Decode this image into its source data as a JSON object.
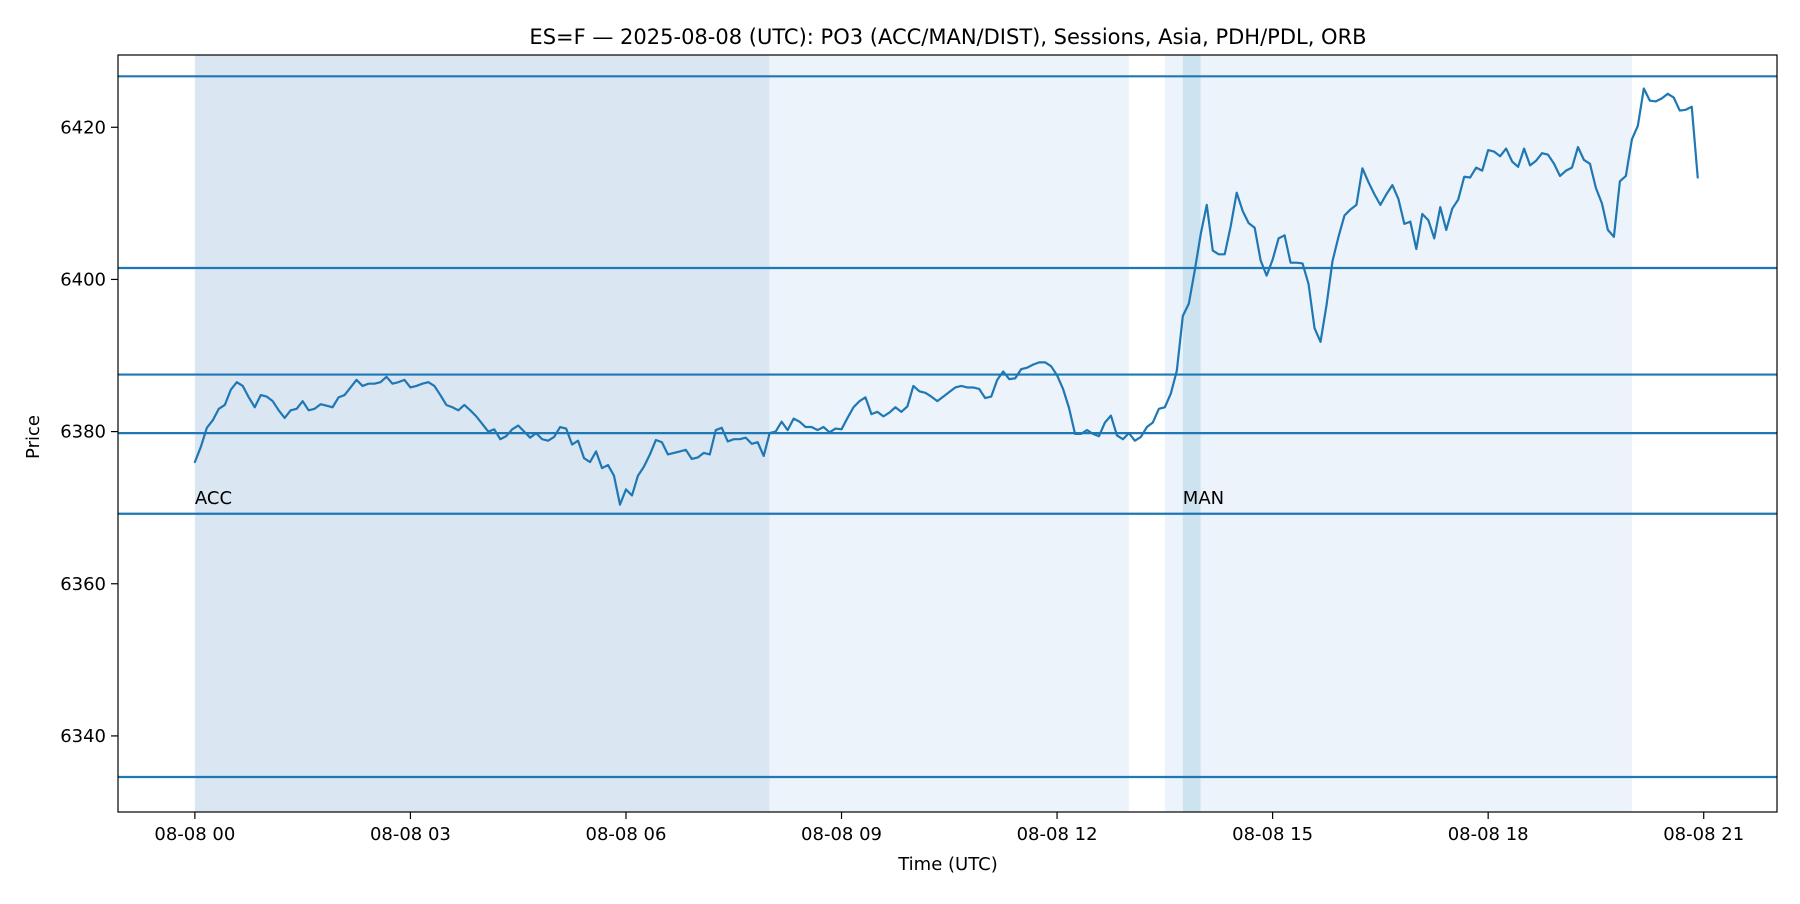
{
  "chart_data": {
    "type": "line",
    "title": "ES=F — 2025-08-08 (UTC): PO3 (ACC/MAN/DIST), Sessions, Asia, PDH/PDL, ORB",
    "xlabel": "Time (UTC)",
    "ylabel": "Price",
    "xlim": [
      -1.07,
      22.02
    ],
    "ylim": [
      6330.0,
      6429.5
    ],
    "x_ticks": [
      {
        "x": 0,
        "label": "08-08 00"
      },
      {
        "x": 3,
        "label": "08-08 03"
      },
      {
        "x": 6,
        "label": "08-08 06"
      },
      {
        "x": 9,
        "label": "08-08 09"
      },
      {
        "x": 12,
        "label": "08-08 12"
      },
      {
        "x": 15,
        "label": "08-08 15"
      },
      {
        "x": 18,
        "label": "08-08 18"
      },
      {
        "x": 21,
        "label": "08-08 21"
      }
    ],
    "y_ticks": [
      {
        "y": 6340,
        "label": "6340"
      },
      {
        "y": 6360,
        "label": "6360"
      },
      {
        "y": 6380,
        "label": "6380"
      },
      {
        "y": 6400,
        "label": "6400"
      },
      {
        "y": 6420,
        "label": "6420"
      }
    ],
    "shaded_regions": [
      {
        "x0": 0,
        "x1": 8.0,
        "color": "#dae7f3"
      },
      {
        "x0": 8.0,
        "x1": 13.0,
        "color": "#ecf3fa"
      },
      {
        "x0": 13.5,
        "x1": 13.75,
        "color": "#ecf3fa"
      },
      {
        "x0": 13.75,
        "x1": 14.0,
        "color": "#cde3ef"
      },
      {
        "x0": 14.0,
        "x1": 20.0,
        "color": "#ecf3fa"
      }
    ],
    "horizontal_lines": [
      6426.7,
      6401.5,
      6387.5,
      6379.8,
      6369.2,
      6334.6
    ],
    "annotations": [
      {
        "text": "ACC",
        "x": 0.0,
        "y": 6370.5
      },
      {
        "text": "MAN",
        "x": 13.75,
        "y": 6370.5
      }
    ],
    "grid": false,
    "series": [
      {
        "color": "#1f77b4",
        "x_start": 0,
        "x_step": 0.0833333,
        "values": [
          6376.0,
          6378.0,
          6380.5,
          6381.5,
          6383.0,
          6383.5,
          6385.5,
          6386.5,
          6386.0,
          6384.5,
          6383.2,
          6384.8,
          6384.6,
          6384.0,
          6382.8,
          6381.8,
          6382.8,
          6383.0,
          6384.0,
          6382.8,
          6383.0,
          6383.6,
          6383.4,
          6383.2,
          6384.5,
          6384.8,
          6385.8,
          6386.8,
          6386.0,
          6386.3,
          6386.3,
          6386.5,
          6387.2,
          6386.3,
          6386.5,
          6386.8,
          6385.8,
          6386.0,
          6386.3,
          6386.5,
          6386.0,
          6384.8,
          6383.5,
          6383.2,
          6382.8,
          6383.5,
          6382.8,
          6382.0,
          6381.0,
          6380.0,
          6380.3,
          6379.0,
          6379.4,
          6380.3,
          6380.8,
          6380.0,
          6379.2,
          6379.8,
          6379.0,
          6378.8,
          6379.3,
          6380.6,
          6380.4,
          6378.3,
          6378.8,
          6376.5,
          6376.0,
          6377.4,
          6375.2,
          6375.6,
          6374.2,
          6370.4,
          6372.4,
          6371.6,
          6374.2,
          6375.4,
          6377.0,
          6378.9,
          6378.6,
          6377.0,
          6377.2,
          6377.4,
          6377.6,
          6376.4,
          6376.6,
          6377.2,
          6377.0,
          6380.2,
          6380.5,
          6378.7,
          6379.0,
          6379.0,
          6379.2,
          6378.4,
          6378.6,
          6376.8,
          6379.8,
          6380.0,
          6381.3,
          6380.2,
          6381.7,
          6381.3,
          6380.6,
          6380.6,
          6380.2,
          6380.6,
          6379.9,
          6380.4,
          6380.3,
          6381.8,
          6383.2,
          6384.0,
          6384.5,
          6382.3,
          6382.6,
          6382.0,
          6382.5,
          6383.2,
          6382.6,
          6383.3,
          6386.0,
          6385.3,
          6385.1,
          6384.6,
          6384.0,
          6384.6,
          6385.2,
          6385.8,
          6386.0,
          6385.8,
          6385.8,
          6385.6,
          6384.4,
          6384.6,
          6386.8,
          6387.9,
          6386.9,
          6387.0,
          6388.2,
          6388.4,
          6388.8,
          6389.1,
          6389.1,
          6388.6,
          6387.4,
          6385.6,
          6383.1,
          6379.7,
          6379.7,
          6380.2,
          6379.7,
          6379.4,
          6381.2,
          6382.1,
          6379.5,
          6379.0,
          6379.8,
          6378.8,
          6379.3,
          6380.6,
          6381.2,
          6383.0,
          6383.2,
          6385.0,
          6388.0,
          6395.2,
          6396.8,
          6401.2,
          6406.0,
          6409.8,
          6403.8,
          6403.3,
          6403.3,
          6407.0,
          6411.4,
          6409.0,
          6407.4,
          6406.8,
          6402.5,
          6400.5,
          6402.6,
          6405.4,
          6405.8,
          6402.2,
          6402.2,
          6402.1,
          6399.4,
          6393.6,
          6391.8,
          6396.6,
          6402.4,
          6405.6,
          6408.4,
          6409.2,
          6409.8,
          6414.6,
          6412.8,
          6411.2,
          6409.8,
          6411.2,
          6412.4,
          6410.6,
          6407.3,
          6407.6,
          6404.0,
          6408.6,
          6407.8,
          6405.4,
          6409.5,
          6406.5,
          6409.3,
          6410.5,
          6413.5,
          6413.4,
          6414.7,
          6414.3,
          6417.0,
          6416.8,
          6416.2,
          6417.2,
          6415.5,
          6414.8,
          6417.2,
          6415.0,
          6415.6,
          6416.6,
          6416.4,
          6415.2,
          6413.6,
          6414.3,
          6414.7,
          6417.4,
          6415.7,
          6415.2,
          6412.0,
          6410.0,
          6406.5,
          6405.6,
          6412.9,
          6413.6,
          6418.4,
          6420.2,
          6425.1,
          6423.5,
          6423.4,
          6423.8,
          6424.4,
          6423.9,
          6422.2,
          6422.3,
          6422.7,
          6413.4
        ]
      }
    ]
  }
}
